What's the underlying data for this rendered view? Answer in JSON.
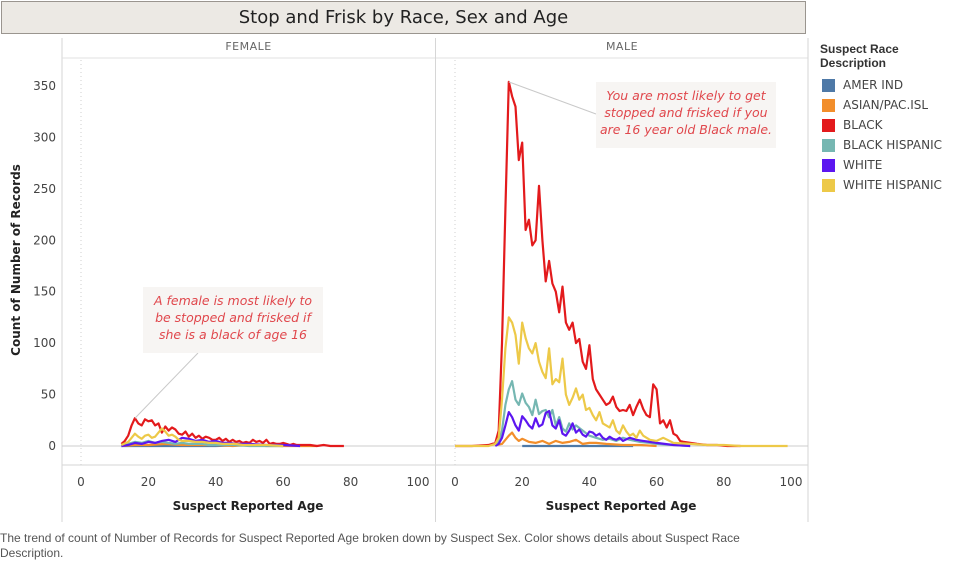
{
  "title": "Stop and Frisk by Race, Sex and Age",
  "caption": "The trend of count of Number of Records for Suspect Reported Age broken down by Suspect Sex.  Color shows details about Suspect Race Description.",
  "legend": {
    "title": "Suspect Race Description",
    "items": [
      {
        "label": "AMER IND",
        "color": "#4e79a7"
      },
      {
        "label": "ASIAN/PAC.ISL",
        "color": "#f28e2b"
      },
      {
        "label": "BLACK",
        "color": "#e31a1c"
      },
      {
        "label": "BLACK HISPANIC",
        "color": "#76b7b2"
      },
      {
        "label": "WHITE",
        "color": "#5c16f0"
      },
      {
        "label": "WHITE HISPANIC",
        "color": "#edc948"
      }
    ]
  },
  "chart_data": {
    "type": "line",
    "ylabel": "Count of Number of Records",
    "xlabel": "Suspect Reported Age",
    "ylim": [
      0,
      370
    ],
    "xlim": [
      -10,
      110
    ],
    "yticks": [
      0,
      50,
      100,
      150,
      200,
      250,
      300,
      350
    ],
    "xticks": [
      0,
      20,
      40,
      60,
      80,
      100
    ],
    "panels": [
      {
        "name": "FEMALE",
        "annotation": {
          "lines": [
            "A female is most likely to",
            "be stopped and frisked if",
            "she is a black of age 16"
          ],
          "target": [
            16,
            27
          ]
        },
        "series": [
          {
            "name": "AMER IND",
            "x": [
              12,
              20,
              30,
              40,
              50,
              60
            ],
            "y": [
              0,
              0,
              0,
              0,
              1,
              0
            ]
          },
          {
            "name": "ASIAN/PAC.ISL",
            "x": [
              12,
              16,
              20,
              25,
              30,
              35,
              40,
              45,
              50,
              55,
              60,
              65,
              70
            ],
            "y": [
              0,
              1,
              1,
              2,
              1,
              1,
              1,
              0,
              1,
              0,
              0,
              0,
              0
            ]
          },
          {
            "name": "BLACK",
            "x": [
              12,
              13,
              14,
              15,
              16,
              17,
              18,
              19,
              20,
              21,
              22,
              23,
              24,
              25,
              26,
              27,
              28,
              29,
              30,
              31,
              32,
              33,
              34,
              35,
              36,
              37,
              38,
              39,
              40,
              41,
              42,
              43,
              44,
              45,
              46,
              47,
              48,
              49,
              50,
              51,
              52,
              53,
              54,
              55,
              56,
              57,
              58,
              59,
              60,
              61,
              62,
              63,
              64,
              65,
              66,
              68,
              70,
              72,
              74,
              76,
              78
            ],
            "y": [
              2,
              5,
              10,
              20,
              27,
              22,
              20,
              26,
              24,
              25,
              20,
              22,
              13,
              19,
              15,
              18,
              16,
              12,
              11,
              14,
              9,
              12,
              8,
              10,
              7,
              9,
              8,
              6,
              6,
              8,
              5,
              7,
              4,
              6,
              4,
              5,
              3,
              4,
              3,
              6,
              4,
              5,
              3,
              6,
              2,
              3,
              2,
              2,
              3,
              2,
              1,
              2,
              1,
              1,
              1,
              1,
              0,
              1,
              0,
              0,
              0
            ]
          },
          {
            "name": "BLACK HISPANIC",
            "x": [
              12,
              14,
              16,
              18,
              20,
              22,
              24,
              26,
              28,
              30,
              32,
              34,
              36,
              38,
              40,
              45,
              50,
              55,
              60
            ],
            "y": [
              0,
              2,
              4,
              3,
              5,
              3,
              4,
              3,
              2,
              3,
              2,
              2,
              2,
              1,
              1,
              1,
              0,
              0,
              0
            ]
          },
          {
            "name": "WHITE",
            "x": [
              12,
              14,
              16,
              18,
              20,
              22,
              24,
              26,
              28,
              30,
              32,
              34,
              36,
              38,
              40,
              42,
              44,
              46,
              48,
              50,
              55,
              60,
              65
            ],
            "y": [
              0,
              1,
              3,
              2,
              4,
              3,
              5,
              6,
              4,
              8,
              7,
              5,
              6,
              4,
              5,
              3,
              3,
              2,
              2,
              2,
              1,
              1,
              0
            ]
          },
          {
            "name": "WHITE HISPANIC",
            "x": [
              12,
              14,
              15,
              16,
              17,
              18,
              19,
              20,
              21,
              22,
              23,
              24,
              25,
              26,
              27,
              28,
              29,
              30,
              32,
              34,
              36,
              38,
              40,
              42,
              44,
              46,
              48,
              50,
              55,
              60
            ],
            "y": [
              1,
              4,
              8,
              12,
              9,
              7,
              10,
              11,
              8,
              9,
              13,
              17,
              14,
              10,
              11,
              9,
              6,
              5,
              5,
              4,
              4,
              3,
              3,
              2,
              2,
              2,
              1,
              1,
              1,
              0
            ]
          }
        ]
      },
      {
        "name": "MALE",
        "annotation": {
          "lines": [
            "You are most likely to get",
            "stopped and frisked if you",
            "are 16 year old Black male."
          ],
          "target": [
            16,
            354
          ]
        },
        "series": [
          {
            "name": "AMER IND",
            "x": [
              20,
              30,
              40,
              50,
              53
            ],
            "y": [
              0,
              0,
              0,
              0,
              0
            ]
          },
          {
            "name": "ASIAN/PAC.ISL",
            "x": [
              12,
              14,
              15,
              16,
              17,
              18,
              19,
              20,
              22,
              24,
              26,
              28,
              30,
              32,
              34,
              36,
              38,
              40,
              42,
              45,
              50,
              55,
              60
            ],
            "y": [
              1,
              2,
              6,
              10,
              13,
              8,
              5,
              7,
              4,
              3,
              5,
              2,
              5,
              3,
              4,
              6,
              2,
              3,
              3,
              2,
              1,
              1,
              0
            ]
          },
          {
            "name": "BLACK",
            "x": [
              0,
              5,
              10,
              12,
              13,
              14,
              15,
              16,
              17,
              18,
              19,
              20,
              21,
              22,
              23,
              24,
              25,
              26,
              27,
              28,
              29,
              30,
              31,
              32,
              33,
              34,
              35,
              36,
              37,
              38,
              39,
              40,
              41,
              42,
              43,
              44,
              45,
              46,
              47,
              48,
              49,
              50,
              51,
              52,
              53,
              54,
              55,
              56,
              57,
              58,
              59,
              60,
              61,
              62,
              63,
              64,
              65,
              66,
              67,
              68,
              70,
              72,
              75,
              78,
              81,
              85
            ],
            "y": [
              0,
              0,
              1,
              3,
              15,
              100,
              230,
              354,
              340,
              330,
              278,
              295,
              210,
              220,
              195,
              200,
              253,
              200,
              160,
              180,
              158,
              150,
              130,
              155,
              120,
              113,
              120,
              100,
              104,
              82,
              75,
              98,
              65,
              55,
              50,
              45,
              40,
              42,
              48,
              38,
              34,
              35,
              34,
              40,
              30,
              38,
              45,
              36,
              30,
              28,
              60,
              55,
              22,
              25,
              18,
              25,
              12,
              10,
              5,
              4,
              3,
              2,
              1,
              1,
              0,
              0
            ]
          },
          {
            "name": "BLACK HISPANIC",
            "x": [
              12,
              13,
              14,
              15,
              16,
              17,
              18,
              19,
              20,
              21,
              22,
              23,
              24,
              25,
              26,
              27,
              28,
              29,
              30,
              31,
              32,
              33,
              34,
              35,
              36,
              38,
              40,
              42,
              44,
              46,
              48,
              50,
              52,
              55,
              58,
              60,
              65,
              70
            ],
            "y": [
              1,
              4,
              15,
              40,
              55,
              63,
              45,
              40,
              51,
              42,
              38,
              30,
              45,
              31,
              34,
              35,
              28,
              35,
              20,
              28,
              17,
              14,
              22,
              16,
              20,
              15,
              10,
              8,
              6,
              7,
              5,
              8,
              6,
              4,
              3,
              2,
              1,
              0
            ]
          },
          {
            "name": "WHITE",
            "x": [
              12,
              13,
              14,
              15,
              16,
              17,
              18,
              19,
              20,
              21,
              22,
              23,
              24,
              25,
              26,
              27,
              28,
              29,
              30,
              31,
              32,
              33,
              34,
              35,
              36,
              37,
              38,
              39,
              40,
              41,
              42,
              43,
              44,
              45,
              46,
              47,
              48,
              49,
              50,
              52,
              54,
              56,
              58,
              60,
              65,
              70
            ],
            "y": [
              0,
              2,
              8,
              20,
              33,
              28,
              20,
              15,
              29,
              25,
              20,
              17,
              27,
              19,
              21,
              32,
              34,
              20,
              17,
              25,
              12,
              10,
              15,
              22,
              13,
              16,
              11,
              9,
              14,
              13,
              10,
              12,
              8,
              6,
              9,
              7,
              6,
              8,
              5,
              8,
              6,
              5,
              4,
              3,
              1,
              0
            ]
          },
          {
            "name": "WHITE HISPANIC",
            "x": [
              0,
              5,
              10,
              12,
              13,
              14,
              15,
              16,
              17,
              18,
              19,
              20,
              21,
              22,
              23,
              24,
              25,
              26,
              27,
              28,
              29,
              30,
              31,
              32,
              33,
              34,
              35,
              36,
              37,
              38,
              39,
              40,
              41,
              42,
              43,
              44,
              45,
              46,
              47,
              48,
              49,
              50,
              51,
              52,
              53,
              54,
              55,
              56,
              58,
              60,
              62,
              65,
              70,
              75,
              80,
              85,
              90,
              95,
              99
            ],
            "y": [
              0,
              0,
              0,
              2,
              8,
              45,
              95,
              125,
              120,
              108,
              80,
              120,
              105,
              95,
              90,
              100,
              82,
              72,
              66,
              95,
              60,
              65,
              62,
              85,
              50,
              40,
              47,
              56,
              45,
              50,
              35,
              37,
              30,
              25,
              33,
              22,
              20,
              18,
              25,
              15,
              12,
              20,
              14,
              10,
              12,
              8,
              15,
              10,
              6,
              5,
              8,
              3,
              2,
              1,
              1,
              0,
              0,
              0,
              0
            ]
          }
        ]
      }
    ]
  }
}
